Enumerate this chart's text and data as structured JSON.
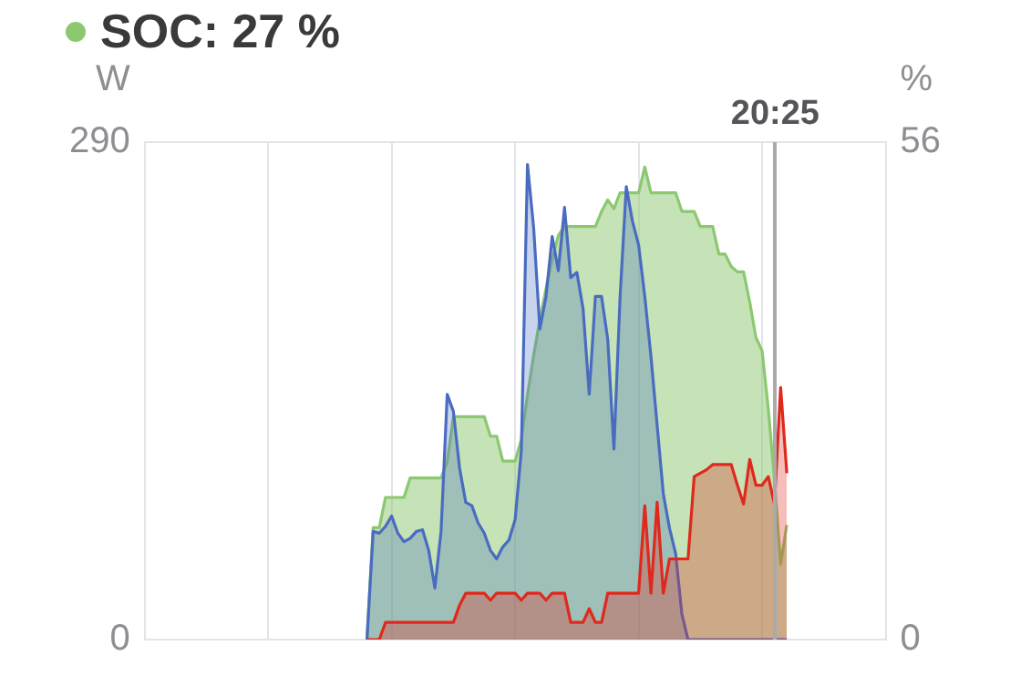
{
  "chart_data": {
    "type": "area",
    "ylabel": "W",
    "y2label": "%",
    "ylim": [
      0,
      290
    ],
    "yticks": [
      0,
      290
    ],
    "y2lim": [
      0,
      56
    ],
    "y2ticks": [
      0,
      56
    ],
    "tick_labels": "y",
    "grid": true,
    "legend": "top left",
    "marker": "none",
    "line_style": "solid",
    "annotations": [
      "20:25"
    ],
    "categories": [
      null,
      null,
      null,
      null,
      null,
      null,
      null,
      null,
      null,
      null,
      null,
      null,
      null,
      null,
      null,
      null,
      null,
      null,
      null,
      null,
      null,
      null,
      null,
      null,
      null,
      null,
      null,
      null,
      null,
      null,
      null,
      null,
      null,
      null,
      null,
      null,
      null,
      null,
      null,
      null,
      null,
      null,
      null,
      null,
      null,
      null,
      null,
      null,
      null,
      null,
      null,
      null,
      null,
      null,
      null,
      null,
      null,
      null,
      null,
      null,
      null,
      null,
      null,
      null,
      null,
      null,
      null,
      null,
      null,
      null,
      null,
      null,
      null,
      null,
      null,
      null,
      null,
      null,
      null,
      null,
      null,
      null,
      null,
      null,
      null,
      null,
      null,
      null,
      null,
      null,
      null,
      null,
      null,
      null,
      null,
      null,
      null,
      null,
      null,
      null,
      null,
      null,
      null,
      null,
      null,
      null,
      null,
      null,
      null,
      null,
      null,
      null,
      null,
      null,
      null,
      null,
      null,
      null,
      null,
      null,
      null
    ],
    "series": [
      {
        "color": "#e0281c",
        "axis": "y",
        "values": [
          null,
          null,
          null,
          null,
          null,
          null,
          null,
          null,
          null,
          null,
          null,
          null,
          null,
          null,
          null,
          null,
          null,
          null,
          null,
          null,
          null,
          null,
          null,
          null,
          null,
          null,
          null,
          null,
          null,
          null,
          null,
          null,
          null,
          null,
          null,
          null,
          0,
          0,
          0,
          10,
          10,
          10,
          10,
          10,
          10,
          10,
          10,
          10,
          10,
          10,
          10,
          20,
          27,
          27,
          27,
          27,
          23,
          27,
          27,
          27,
          27,
          23,
          27,
          27,
          27,
          23,
          27,
          27,
          27,
          10,
          10,
          10,
          18,
          10,
          10,
          27,
          27,
          27,
          27,
          27,
          27,
          78,
          27,
          80,
          27,
          47,
          47,
          47,
          47,
          95,
          97,
          99,
          102,
          102,
          102,
          102,
          90,
          79,
          105,
          90,
          90,
          95,
          79,
          147,
          97,
          null,
          null,
          null,
          null,
          null,
          null,
          null,
          null,
          null,
          null,
          null,
          null,
          null,
          null,
          null,
          null
        ]
      },
      {
        "color": "#4a6cc0",
        "axis": "y",
        "values": [
          null,
          null,
          null,
          null,
          null,
          null,
          null,
          null,
          null,
          null,
          null,
          null,
          null,
          null,
          null,
          null,
          null,
          null,
          null,
          null,
          null,
          null,
          null,
          null,
          null,
          null,
          null,
          null,
          null,
          null,
          null,
          null,
          null,
          null,
          null,
          null,
          0,
          63,
          62,
          66,
          72,
          62,
          57,
          59,
          63,
          64,
          52,
          30,
          63,
          143,
          133,
          100,
          80,
          78,
          68,
          62,
          52,
          47,
          54,
          58,
          70,
          110,
          277,
          240,
          181,
          200,
          235,
          215,
          252,
          211,
          214,
          193,
          143,
          200,
          200,
          175,
          111,
          200,
          264,
          244,
          230,
          200,
          165,
          125,
          85,
          65,
          50,
          15,
          0,
          0,
          0,
          0,
          0,
          0,
          0,
          0,
          0,
          0,
          0,
          0,
          0,
          0,
          0,
          0,
          0,
          null,
          null,
          null,
          null,
          null,
          null,
          null,
          null,
          null,
          null,
          null,
          null,
          null,
          null,
          null,
          null
        ]
      },
      {
        "name": "SOC:  27 %",
        "color": "#8cc870",
        "axis": "y2",
        "values": [
          null,
          null,
          null,
          null,
          null,
          null,
          null,
          null,
          null,
          null,
          null,
          null,
          null,
          null,
          null,
          null,
          null,
          null,
          null,
          null,
          null,
          null,
          null,
          null,
          null,
          null,
          null,
          null,
          null,
          null,
          null,
          null,
          null,
          null,
          null,
          null,
          0,
          12.6,
          12.6,
          16,
          16,
          16,
          16,
          18.2,
          18.2,
          18.2,
          18.2,
          18.2,
          18.2,
          20,
          25.1,
          25.1,
          25.1,
          25.1,
          25.1,
          25.1,
          22.9,
          22.9,
          20.1,
          20.1,
          20.1,
          22.5,
          27.5,
          32,
          36,
          39.5,
          42.8,
          45.5,
          46.5,
          46.5,
          46.5,
          46.5,
          46.5,
          46.5,
          48.2,
          49.5,
          48.5,
          50.3,
          50.3,
          50.3,
          50.3,
          53.2,
          50.3,
          50.3,
          50.3,
          50.3,
          50.3,
          48.2,
          48.2,
          48.2,
          46.5,
          46.5,
          46.5,
          43.4,
          43.4,
          42,
          41.4,
          41.4,
          38,
          34,
          32.5,
          26,
          18,
          8.5,
          12.9,
          null,
          null,
          null,
          null,
          null,
          null,
          null,
          null,
          null,
          null,
          null,
          null,
          null,
          null,
          null,
          null
        ]
      }
    ]
  }
}
